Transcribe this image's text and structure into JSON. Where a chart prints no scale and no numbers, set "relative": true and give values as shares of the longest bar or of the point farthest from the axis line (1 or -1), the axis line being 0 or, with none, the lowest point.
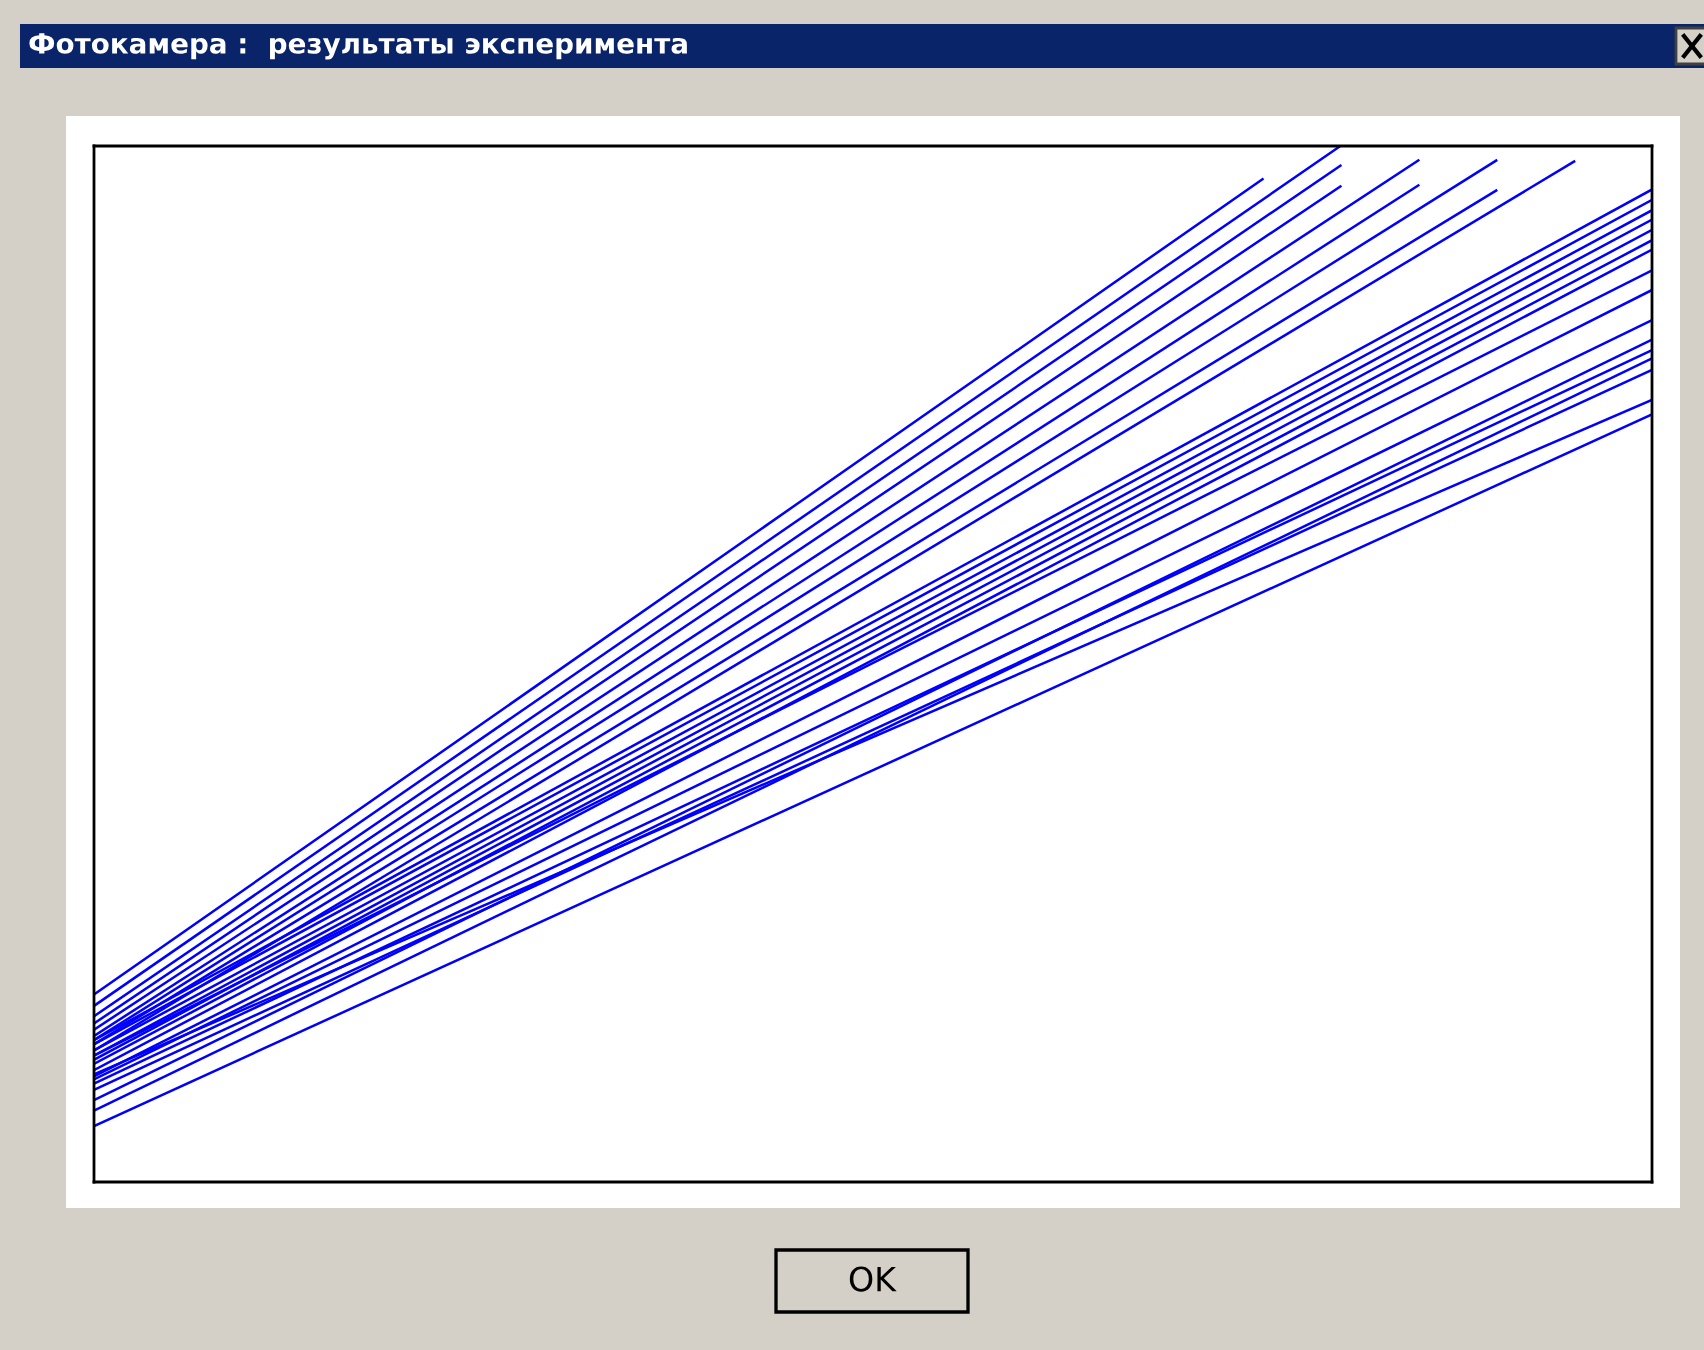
{
  "chart_data": {
    "type": "line",
    "relative": true,
    "title": "Фотокамера :  результаты эксперимента",
    "annotations": [
      "OK"
    ],
    "categories": [
      null,
      null,
      null,
      null,
      null,
      null,
      null,
      null,
      null,
      null,
      null,
      null,
      null,
      null,
      null,
      null,
      null,
      null,
      null,
      null,
      null
    ],
    "series": [
      {
        "color": "#0000ff",
        "values": [
          0.181,
          null,
          null,
          null,
          null,
          null,
          null,
          null,
          null,
          null,
          null,
          null,
          null,
          null,
          null,
          0.968,
          null,
          null,
          null,
          null,
          null
        ]
      },
      {
        "color": "#0000ff",
        "values": [
          0.17,
          null,
          null,
          null,
          null,
          null,
          null,
          null,
          null,
          null,
          null,
          null,
          null,
          null,
          null,
          null,
          1.0,
          null,
          null,
          null,
          null
        ]
      },
      {
        "color": "#0000ff",
        "values": [
          0.16,
          null,
          null,
          null,
          null,
          null,
          null,
          null,
          null,
          null,
          null,
          null,
          null,
          null,
          null,
          null,
          0.981,
          null,
          null,
          null,
          null
        ]
      },
      {
        "color": "#0000ff",
        "values": [
          0.153,
          null,
          null,
          null,
          null,
          null,
          null,
          null,
          null,
          null,
          null,
          null,
          null,
          null,
          null,
          null,
          0.961,
          null,
          null,
          null,
          null
        ]
      },
      {
        "color": "#0000ff",
        "values": [
          0.147,
          null,
          null,
          null,
          null,
          null,
          null,
          null,
          null,
          null,
          null,
          null,
          null,
          null,
          null,
          null,
          null,
          0.986,
          null,
          null,
          null
        ]
      },
      {
        "color": "#0000ff",
        "values": [
          0.141,
          null,
          null,
          null,
          null,
          null,
          null,
          null,
          null,
          null,
          null,
          null,
          null,
          null,
          null,
          null,
          null,
          0.962,
          null,
          null,
          null
        ]
      },
      {
        "color": "#0000ff",
        "values": [
          0.137,
          null,
          null,
          null,
          null,
          null,
          null,
          null,
          null,
          null,
          null,
          null,
          null,
          null,
          null,
          null,
          null,
          null,
          0.986,
          null,
          null
        ]
      },
      {
        "color": "#0000ff",
        "values": [
          0.133,
          null,
          null,
          null,
          null,
          null,
          null,
          null,
          null,
          null,
          null,
          null,
          null,
          null,
          null,
          null,
          null,
          null,
          0.957,
          null,
          null
        ]
      },
      {
        "color": "#0000ff",
        "values": [
          0.127,
          null,
          null,
          null,
          null,
          null,
          null,
          null,
          null,
          null,
          null,
          null,
          null,
          null,
          null,
          null,
          null,
          null,
          null,
          0.985,
          null
        ]
      },
      {
        "color": "#0000ff",
        "values": [
          0.137,
          null,
          null,
          null,
          null,
          null,
          null,
          null,
          null,
          null,
          null,
          null,
          null,
          null,
          null,
          null,
          null,
          null,
          null,
          null,
          0.958
        ]
      },
      {
        "color": "#0000ff",
        "values": [
          0.133,
          null,
          null,
          null,
          null,
          null,
          null,
          null,
          null,
          null,
          null,
          null,
          null,
          null,
          null,
          null,
          null,
          null,
          null,
          null,
          0.948
        ]
      },
      {
        "color": "#0000ff",
        "values": [
          0.127,
          null,
          null,
          null,
          null,
          null,
          null,
          null,
          null,
          null,
          null,
          null,
          null,
          null,
          null,
          null,
          null,
          null,
          null,
          null,
          0.938
        ]
      },
      {
        "color": "#0000ff",
        "values": [
          0.122,
          null,
          null,
          null,
          null,
          null,
          null,
          null,
          null,
          null,
          null,
          null,
          null,
          null,
          null,
          null,
          null,
          null,
          null,
          null,
          0.929
        ]
      },
      {
        "color": "#0000ff",
        "values": [
          0.118,
          null,
          null,
          null,
          null,
          null,
          null,
          null,
          null,
          null,
          null,
          null,
          null,
          null,
          null,
          null,
          null,
          null,
          null,
          null,
          0.919
        ]
      },
      {
        "color": "#0000ff",
        "values": [
          0.114,
          null,
          null,
          null,
          null,
          null,
          null,
          null,
          null,
          null,
          null,
          null,
          null,
          null,
          null,
          null,
          null,
          null,
          null,
          null,
          0.909
        ]
      },
      {
        "color": "#0000ff",
        "values": [
          0.108,
          null,
          null,
          null,
          null,
          null,
          null,
          null,
          null,
          null,
          null,
          null,
          null,
          null,
          null,
          null,
          null,
          null,
          null,
          null,
          0.9
        ]
      },
      {
        "color": "#0000ff",
        "values": [
          0.122,
          null,
          null,
          null,
          null,
          null,
          null,
          null,
          null,
          null,
          null,
          null,
          null,
          null,
          null,
          null,
          null,
          null,
          null,
          null,
          0.88
        ]
      },
      {
        "color": "#0000ff",
        "values": [
          0.102,
          null,
          null,
          null,
          null,
          null,
          null,
          null,
          null,
          null,
          null,
          null,
          null,
          null,
          null,
          null,
          null,
          null,
          null,
          null,
          0.861
        ]
      },
      {
        "color": "#0000ff",
        "values": [
          0.099,
          null,
          null,
          null,
          null,
          null,
          null,
          null,
          null,
          null,
          null,
          null,
          null,
          null,
          null,
          null,
          null,
          null,
          null,
          null,
          0.832
        ]
      },
      {
        "color": "#0000ff",
        "values": [
          0.095,
          null,
          null,
          null,
          null,
          null,
          null,
          null,
          null,
          null,
          null,
          null,
          null,
          null,
          null,
          null,
          null,
          null,
          null,
          null,
          0.803
        ]
      },
      {
        "color": "#0000ff",
        "values": [
          0.089,
          null,
          null,
          null,
          null,
          null,
          null,
          null,
          null,
          null,
          null,
          null,
          null,
          null,
          null,
          null,
          null,
          null,
          null,
          null,
          0.784
        ]
      },
      {
        "color": "#0000ff",
        "values": [
          0.104,
          null,
          null,
          null,
          null,
          null,
          null,
          null,
          null,
          null,
          null,
          null,
          null,
          null,
          null,
          null,
          null,
          null,
          null,
          null,
          0.755
        ]
      },
      {
        "color": "#0000ff",
        "values": [
          0.079,
          null,
          null,
          null,
          null,
          null,
          null,
          null,
          null,
          null,
          null,
          null,
          null,
          null,
          null,
          null,
          null,
          null,
          null,
          null,
          0.813
        ]
      },
      {
        "color": "#0000ff",
        "values": [
          0.069,
          null,
          null,
          null,
          null,
          null,
          null,
          null,
          null,
          null,
          null,
          null,
          null,
          null,
          null,
          null,
          null,
          null,
          null,
          null,
          0.795
        ]
      },
      {
        "color": "#0000ff",
        "values": [
          0.054,
          null,
          null,
          null,
          null,
          null,
          null,
          null,
          null,
          null,
          null,
          null,
          null,
          null,
          null,
          null,
          null,
          null,
          null,
          null,
          0.741
        ]
      }
    ]
  }
}
